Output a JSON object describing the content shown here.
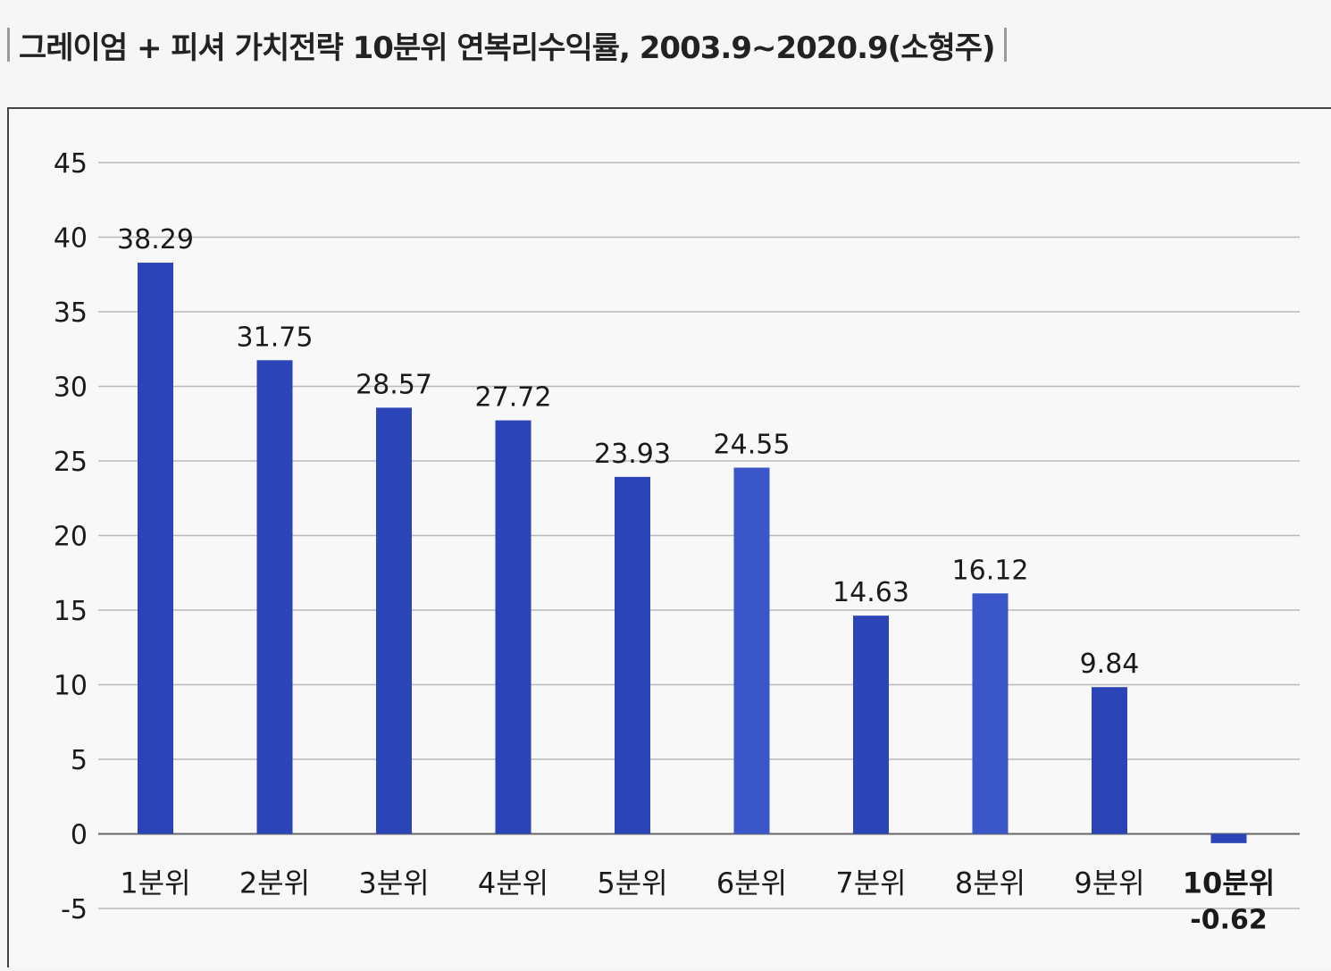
{
  "title": "그레이엄 + 피셔 가치전략 10분위 연복리수익률, 2003.9~2020.9(소형주)",
  "chart_data": {
    "type": "bar",
    "categories": [
      "1분위",
      "2분위",
      "3분위",
      "4분위",
      "5분위",
      "6분위",
      "7분위",
      "8분위",
      "9분위",
      "10분위"
    ],
    "values": [
      38.29,
      31.75,
      28.57,
      27.72,
      23.93,
      24.55,
      14.63,
      16.12,
      9.84,
      -0.62
    ],
    "data_labels": [
      "38.29",
      "31.75",
      "28.57",
      "27.72",
      "23.93",
      "24.55",
      "14.63",
      "16.12",
      "9.84",
      "-0.62"
    ],
    "title": "그레이엄 + 피셔 가치전략 10분위 연복리수익률, 2003.9~2020.9(소형주)",
    "xlabel": "",
    "ylabel": "",
    "ylim": [
      -5,
      45
    ],
    "yticks": [
      45,
      40,
      35,
      30,
      25,
      20,
      15,
      10,
      5,
      0,
      -5
    ],
    "grid": true,
    "legend": "none",
    "colors": {
      "bar": "#2b45b8",
      "bar_alt": "#3a56c8",
      "grid": "#b9b9b9",
      "axis": "#666666"
    }
  }
}
